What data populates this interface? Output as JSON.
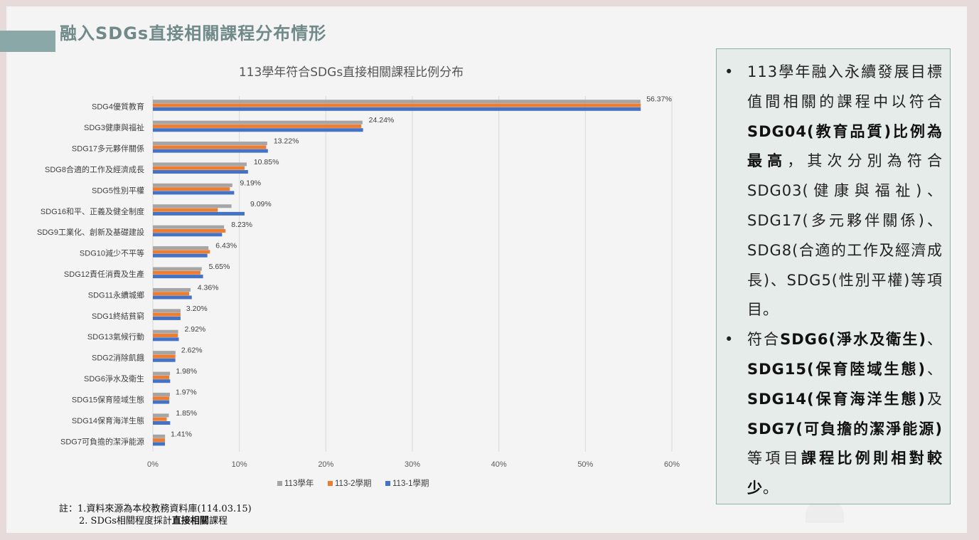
{
  "slide": {
    "title": "融入SDGs直接相關課程分布情形"
  },
  "chart_data": {
    "type": "bar",
    "orientation": "horizontal",
    "title": "113學年符合SDGs直接相關課程比例分布",
    "categories": [
      "SDG4優質教育",
      "SDG3健康與福祉",
      "SDG17多元夥伴關係",
      "SDG8合適的工作及經濟成長",
      "SDG5性別平權",
      "SDG16和平、正義及健全制度",
      "SDG9工業化、創新及基礎建設",
      "SDG10減少不平等",
      "SDG12責任消費及生產",
      "SDG11永續城鄉",
      "SDG1終結貧窮",
      "SDG13氣候行動",
      "SDG2消除飢餓",
      "SDG6淨水及衛生",
      "SDG15保育陸域生態",
      "SDG14保育海洋生態",
      "SDG7可負擔的潔淨能源"
    ],
    "series": [
      {
        "name": "113學年",
        "color": "#a5a5a5",
        "values": [
          56.37,
          24.24,
          13.22,
          10.85,
          9.19,
          9.09,
          8.23,
          6.43,
          5.65,
          4.36,
          3.2,
          2.92,
          2.62,
          1.98,
          1.97,
          1.85,
          1.41
        ]
      },
      {
        "name": "113-2學期",
        "color": "#ed7d31",
        "values": [
          56.4,
          24.1,
          13.1,
          10.6,
          8.9,
          7.5,
          8.4,
          6.6,
          5.5,
          4.2,
          3.2,
          2.9,
          2.6,
          1.9,
          1.9,
          1.6,
          1.4
        ]
      },
      {
        "name": "113-1學期",
        "color": "#4472c4",
        "values": [
          56.4,
          24.3,
          13.3,
          11.0,
          9.4,
          10.6,
          8.0,
          6.3,
          5.8,
          4.5,
          3.2,
          3.0,
          2.6,
          2.0,
          1.9,
          2.0,
          1.4
        ]
      }
    ],
    "data_labels": [
      "56.37%",
      "24.24%",
      "13.22%",
      "10.85%",
      "9.19%",
      "9.09%",
      "8.23%",
      "6.43%",
      "5.65%",
      "4.36%",
      "3.20%",
      "2.92%",
      "2.62%",
      "1.98%",
      "1.97%",
      "1.85%",
      "1.41%"
    ],
    "xaxis": {
      "ticks": [
        0,
        10,
        20,
        30,
        40,
        50,
        60
      ],
      "tick_labels": [
        "0%",
        "10%",
        "20%",
        "30%",
        "40%",
        "50%",
        "60%"
      ],
      "range": [
        0,
        60
      ]
    },
    "grid": true,
    "legend": "bottom"
  },
  "notes": {
    "line1": "註：1.資料來源為本校教務資料庫(114.03.15)",
    "line2_prefix": "2. SDGs相關程度採計",
    "line2_bold": "直接相關",
    "line2_suffix": "課程"
  },
  "info_box": {
    "bullet": "•",
    "p1": [
      {
        "text": "113學年融入永續發展目標值間相關的課程中以符合",
        "bold": false
      },
      {
        "text": "SDG04(教育品質)比例為最高",
        "bold": true
      },
      {
        "text": "，其次分別為符合SDG03(健康與福祉)、SDG17(多元夥伴關係)、SDG8(合適的工作及經濟成長)、SDG5(性別平權)等項目。",
        "bold": false
      }
    ],
    "p2": [
      {
        "text": "符合",
        "bold": false
      },
      {
        "text": "SDG6(淨水及衛生)",
        "bold": true
      },
      {
        "text": "、",
        "bold": false
      },
      {
        "text": "SDG15(保育陸域生態)",
        "bold": true
      },
      {
        "text": "、",
        "bold": false
      },
      {
        "text": "SDG14(保育海洋生態)",
        "bold": true
      },
      {
        "text": "及",
        "bold": false
      },
      {
        "text": "SDG7(可負擔的潔淨能源)",
        "bold": true
      },
      {
        "text": "等項目",
        "bold": false
      },
      {
        "text": "課程比例則相對較少",
        "bold": true
      },
      {
        "text": "。",
        "bold": false
      }
    ]
  }
}
